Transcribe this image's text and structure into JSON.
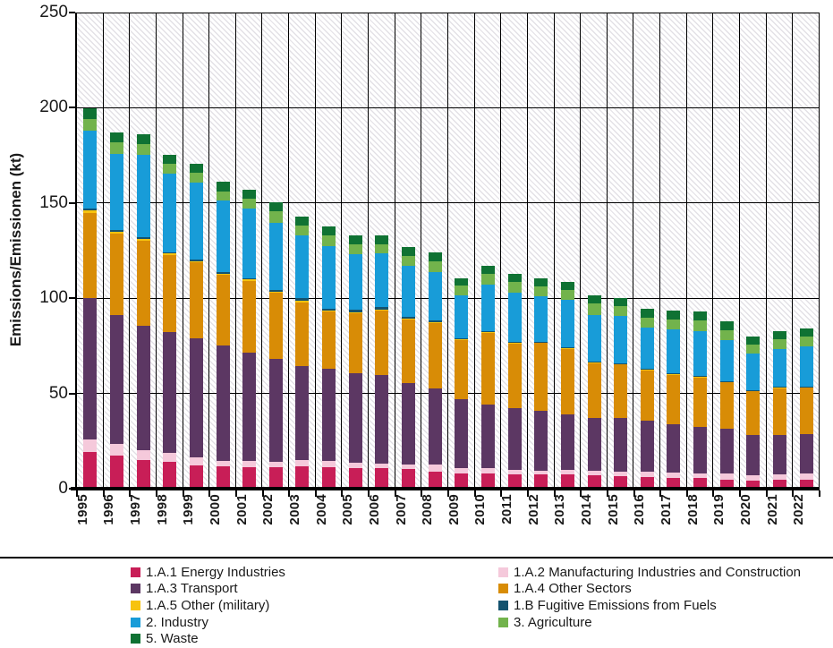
{
  "chart_data": {
    "type": "bar",
    "stacked": true,
    "title": "",
    "xlabel": "",
    "ylabel": "Emissions/Emissionen (kt)",
    "ylim": [
      0,
      250
    ],
    "yticks": [
      0,
      50,
      100,
      150,
      200,
      250
    ],
    "grid": "horizontal-and-category-separators",
    "plot_background": "diagonal-hatch",
    "categories": [
      1995,
      1996,
      1997,
      1998,
      1999,
      2000,
      2001,
      2002,
      2003,
      2004,
      2005,
      2006,
      2007,
      2008,
      2009,
      2010,
      2011,
      2012,
      2013,
      2014,
      2015,
      2016,
      2017,
      2018,
      2019,
      2020,
      2021,
      2022
    ],
    "series": [
      {
        "key": "energy-industries",
        "name": "1.A.1 Energy Industries",
        "color": "#C81E57",
        "values": [
          19.5,
          17.6,
          15.0,
          14.1,
          12.4,
          11.6,
          11.3,
          11.3,
          11.6,
          11.3,
          10.9,
          10.6,
          10.2,
          9.0,
          7.9,
          7.9,
          7.3,
          7.3,
          7.3,
          7.0,
          6.4,
          5.9,
          5.7,
          5.6,
          4.8,
          4.3,
          4.7,
          4.8
        ]
      },
      {
        "key": "manufacturing-construction",
        "name": "1.A.2 Manufacturing Industries and Construction",
        "color": "#F5C9DB",
        "values": [
          6.3,
          5.7,
          5.2,
          4.5,
          4.0,
          3.2,
          3.1,
          2.8,
          3.3,
          3.1,
          2.8,
          2.8,
          2.7,
          3.6,
          3.1,
          2.7,
          2.5,
          2.2,
          2.5,
          2.5,
          2.6,
          3.0,
          2.8,
          2.6,
          3.0,
          2.8,
          2.6,
          3.0
        ]
      },
      {
        "key": "transport",
        "name": "1.A.3 Transport",
        "color": "#5C3763",
        "values": [
          74.2,
          67.7,
          65.2,
          63.8,
          62.5,
          60.5,
          56.9,
          53.9,
          49.7,
          48.6,
          46.9,
          46.1,
          42.7,
          39.9,
          36.0,
          33.7,
          32.6,
          31.3,
          29.0,
          27.8,
          28.0,
          26.8,
          25.4,
          24.1,
          23.7,
          21.0,
          21.1,
          20.9
        ]
      },
      {
        "key": "other-sectors",
        "name": "1.A.4 Other Sectors",
        "color": "#D88C06",
        "values": [
          44.9,
          42.8,
          45.0,
          40.2,
          40.0,
          37.0,
          37.9,
          34.8,
          33.4,
          29.9,
          31.5,
          33.8,
          33.0,
          34.6,
          31.1,
          37.7,
          33.7,
          35.6,
          34.6,
          28.5,
          28.2,
          26.4,
          26.0,
          26.1,
          24.4,
          23.1,
          24.4,
          24.4
        ]
      },
      {
        "key": "other-military",
        "name": "1.A.5 Other (military)",
        "color": "#F7C30E",
        "values": [
          1.1,
          1.0,
          0.9,
          0.8,
          0.6,
          0.6,
          0.6,
          0.6,
          0.6,
          0.6,
          0.5,
          0.5,
          0.5,
          0.5,
          0.4,
          0.4,
          0.3,
          0.3,
          0.4,
          0.3,
          0.3,
          0.3,
          0.3,
          0.3,
          0.2,
          0.2,
          0.2,
          0.2
        ]
      },
      {
        "key": "fugitive-emissions",
        "name": "1.B Fugitive Emissions from Fuels",
        "color": "#14536F",
        "values": [
          1.2,
          1.2,
          0.9,
          0.8,
          0.7,
          0.9,
          0.8,
          1.1,
          1.5,
          1.2,
          1.4,
          1.4,
          1.2,
          0.9,
          0.7,
          0.5,
          0.5,
          0.5,
          0.7,
          0.7,
          0.5,
          0.5,
          0.5,
          0.5,
          0.5,
          0.5,
          0.5,
          0.5
        ]
      },
      {
        "key": "industry",
        "name": "2. Industry",
        "color": "#189CD8",
        "values": [
          40.7,
          39.9,
          43.3,
          41.3,
          40.7,
          37.7,
          36.6,
          35.2,
          32.7,
          32.6,
          29.1,
          28.2,
          26.6,
          25.3,
          22.2,
          24.2,
          26.0,
          23.7,
          24.9,
          24.5,
          24.5,
          21.9,
          22.8,
          23.6,
          21.5,
          19.2,
          19.9,
          20.9
        ]
      },
      {
        "key": "agriculture",
        "name": "3. Agriculture",
        "color": "#72B34C",
        "values": [
          6.2,
          5.8,
          5.6,
          5.0,
          4.9,
          4.7,
          5.0,
          6.0,
          5.4,
          5.6,
          5.1,
          4.8,
          5.1,
          5.4,
          5.1,
          5.5,
          5.5,
          5.5,
          5.1,
          5.9,
          5.5,
          5.0,
          5.5,
          5.7,
          5.1,
          4.7,
          5.0,
          5.3
        ]
      },
      {
        "key": "waste",
        "name": "5. Waste",
        "color": "#0F7233",
        "values": [
          5.7,
          5.3,
          5.2,
          5.0,
          5.0,
          5.0,
          4.6,
          4.9,
          4.8,
          4.7,
          4.7,
          5.0,
          4.7,
          4.7,
          4.2,
          4.6,
          4.3,
          4.3,
          4.3,
          4.3,
          4.3,
          4.6,
          4.6,
          4.7,
          4.7,
          4.2,
          4.1,
          4.0
        ]
      }
    ],
    "legend_position": "bottom-two-columns"
  },
  "legend": {
    "columns": [
      {
        "items": [
          {
            "key": "energy-industries",
            "label": "1.A.1 Energy Industries",
            "color": "#C81E57"
          },
          {
            "key": "transport",
            "label": "1.A.3 Transport",
            "color": "#5C3763"
          },
          {
            "key": "other-military",
            "label": "1.A.5 Other (military)",
            "color": "#F7C30E"
          },
          {
            "key": "industry",
            "label": "2. Industry",
            "color": "#189CD8"
          },
          {
            "key": "waste",
            "label": "5. Waste",
            "color": "#0F7233"
          }
        ]
      },
      {
        "items": [
          {
            "key": "manufacturing-construction",
            "label": "1.A.2 Manufacturing Industries and Construction",
            "color": "#F5C9DB"
          },
          {
            "key": "other-sectors",
            "label": "1.A.4 Other Sectors",
            "color": "#D88C06"
          },
          {
            "key": "fugitive-emissions",
            "label": "1.B Fugitive Emissions from Fuels",
            "color": "#14536F"
          },
          {
            "key": "agriculture",
            "label": "3. Agriculture",
            "color": "#72B34C"
          }
        ]
      }
    ]
  }
}
